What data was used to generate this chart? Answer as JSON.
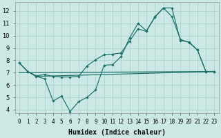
{
  "xlabel": "Humidex (Indice chaleur)",
  "bg_color": "#cce8e5",
  "grid_color": "#aed4d0",
  "line_color": "#1a7068",
  "xlim": [
    -0.5,
    23.5
  ],
  "ylim": [
    3.7,
    12.7
  ],
  "xtick_labels": [
    "0",
    "1",
    "2",
    "3",
    "4",
    "5",
    "6",
    "7",
    "8",
    "9",
    "10",
    "11",
    "12",
    "13",
    "14",
    "15",
    "16",
    "17",
    "18",
    "19",
    "20",
    "21",
    "22",
    "23"
  ],
  "ytick_vals": [
    4,
    5,
    6,
    7,
    8,
    9,
    10,
    11,
    12
  ],
  "line1_x": [
    0,
    1,
    2,
    3,
    4,
    5,
    6,
    7,
    8,
    9,
    10,
    11,
    12,
    13,
    14,
    15,
    16,
    17,
    18,
    19,
    20,
    21,
    22,
    23
  ],
  "line1_y": [
    7.8,
    7.1,
    6.7,
    6.5,
    4.7,
    5.1,
    3.85,
    4.65,
    5.0,
    5.6,
    7.6,
    7.65,
    8.3,
    9.8,
    11.0,
    10.4,
    11.5,
    12.25,
    12.25,
    9.6,
    9.5,
    8.85,
    7.1,
    7.1
  ],
  "line2_x": [
    0,
    1,
    2,
    3,
    4,
    5,
    6,
    7,
    8,
    9,
    10,
    11,
    12,
    13,
    14,
    15,
    16,
    17,
    18,
    19,
    20,
    21,
    22,
    23
  ],
  "line2_y": [
    7.8,
    7.1,
    6.75,
    6.85,
    6.7,
    6.65,
    6.65,
    6.7,
    7.55,
    8.05,
    8.45,
    8.5,
    8.6,
    9.55,
    10.55,
    10.35,
    11.55,
    12.25,
    11.55,
    9.7,
    9.45,
    8.85,
    7.1,
    7.1
  ],
  "line3_x": [
    0,
    23
  ],
  "line3_y": [
    7.0,
    7.1
  ],
  "line4_x": [
    0,
    1,
    2,
    23
  ],
  "line4_y": [
    7.8,
    7.1,
    6.7,
    7.1
  ],
  "xlabel_fontsize": 7,
  "tick_fontsize": 5.5
}
